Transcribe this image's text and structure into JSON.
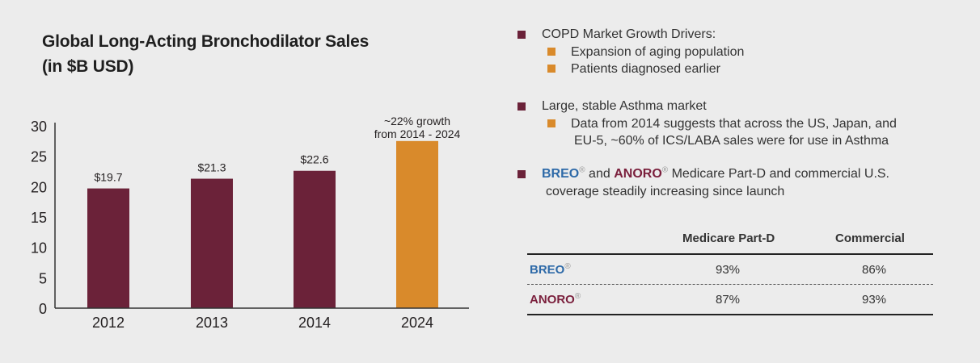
{
  "chart_data": {
    "type": "bar",
    "title_lines": [
      "Global Long-Acting Bronchodilator Sales",
      "(in $B USD)"
    ],
    "categories": [
      "2012",
      "2013",
      "2014",
      "2024"
    ],
    "values": [
      19.7,
      21.3,
      22.6,
      27.5
    ],
    "data_labels": [
      "$19.7",
      "$21.3",
      "$22.6",
      ""
    ],
    "bar_colors": [
      "#6b2239",
      "#6b2239",
      "#6b2239",
      "#d98a2b"
    ],
    "ylim": [
      0,
      30
    ],
    "yticks": [
      0,
      5,
      10,
      15,
      20,
      25,
      30
    ],
    "annotation_lines": [
      "~22% growth",
      "from 2014 - 2024"
    ],
    "xlabel": "",
    "ylabel": "",
    "grid": false
  },
  "bullets": {
    "b1": {
      "label": "COPD Market Growth Drivers:",
      "subs": [
        "Expansion of aging population",
        "Patients diagnosed earlier"
      ]
    },
    "b2": {
      "label": "Large, stable Asthma market",
      "sub_line1": "Data from 2014 suggests that across the US, Japan, and",
      "sub_line2": "EU-5, ~60% of ICS/LABA sales were for use in Asthma"
    },
    "b3": {
      "brand1": "BREO",
      "and": " and ",
      "brand2": "ANORO",
      "reg": "®",
      "rest": " Medicare Part-D and commercial U.S.",
      "line2": "coverage steadily increasing since launch"
    }
  },
  "coverage_table": {
    "headers": [
      "",
      "Medicare Part-D",
      "Commercial"
    ],
    "rows": [
      {
        "name": "BREO",
        "medicare": "93%",
        "commercial": "86%"
      },
      {
        "name": "ANORO",
        "medicare": "87%",
        "commercial": "93%"
      }
    ]
  },
  "colors": {
    "bar_primary": "#6b2239",
    "bar_highlight": "#d98a2b",
    "breo_blue": "#2e6aa8",
    "anoro_maroon": "#7a1f3c",
    "background": "#ececec"
  }
}
